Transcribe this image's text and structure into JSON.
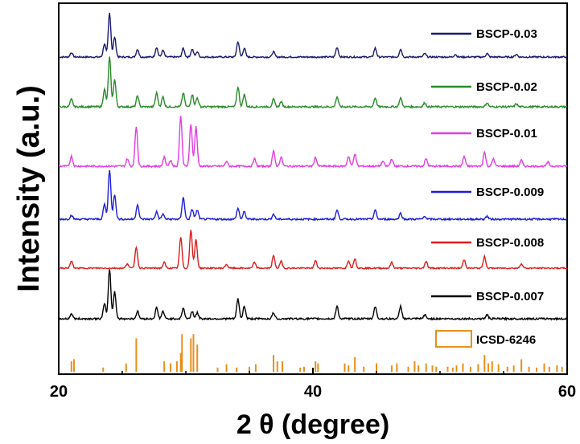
{
  "chart_data": {
    "type": "line",
    "xlabel": "2 θ (degree)",
    "ylabel": "Intensity (a.u.)",
    "xlim": [
      20,
      60
    ],
    "xticks": [
      20,
      40,
      60
    ],
    "xtick_labels": [
      "20",
      "40",
      "60"
    ],
    "yticks_shown": false,
    "legend_placement": "right, beside each trace",
    "series": [
      {
        "name": "BSCP-0.03",
        "color": "#1a1a6e",
        "baseline_order": 6,
        "peaks": [
          [
            21.0,
            0.1
          ],
          [
            23.6,
            0.3
          ],
          [
            24.0,
            1.0
          ],
          [
            24.4,
            0.45
          ],
          [
            26.2,
            0.18
          ],
          [
            27.7,
            0.22
          ],
          [
            28.2,
            0.15
          ],
          [
            29.8,
            0.2
          ],
          [
            30.5,
            0.18
          ],
          [
            30.9,
            0.12
          ],
          [
            34.1,
            0.35
          ],
          [
            34.6,
            0.2
          ],
          [
            36.9,
            0.12
          ],
          [
            41.9,
            0.22
          ],
          [
            44.9,
            0.2
          ],
          [
            46.9,
            0.18
          ],
          [
            48.8,
            0.08
          ],
          [
            51.2,
            0.06
          ],
          [
            53.7,
            0.08
          ],
          [
            56.0,
            0.06
          ]
        ]
      },
      {
        "name": "BSCP-0.02",
        "color": "#2a8a2a",
        "baseline_order": 5,
        "peaks": [
          [
            21.0,
            0.15
          ],
          [
            23.6,
            0.35
          ],
          [
            24.0,
            1.0
          ],
          [
            24.4,
            0.55
          ],
          [
            26.2,
            0.22
          ],
          [
            27.7,
            0.28
          ],
          [
            28.2,
            0.2
          ],
          [
            29.8,
            0.28
          ],
          [
            30.5,
            0.25
          ],
          [
            30.9,
            0.18
          ],
          [
            34.1,
            0.4
          ],
          [
            34.6,
            0.25
          ],
          [
            36.9,
            0.15
          ],
          [
            37.5,
            0.1
          ],
          [
            41.9,
            0.2
          ],
          [
            44.9,
            0.18
          ],
          [
            46.9,
            0.18
          ],
          [
            48.8,
            0.08
          ],
          [
            53.7,
            0.08
          ],
          [
            56.0,
            0.06
          ]
        ]
      },
      {
        "name": "BSCP-0.01",
        "color": "#e23ce2",
        "baseline_order": 4,
        "peaks": [
          [
            21.0,
            0.2
          ],
          [
            25.4,
            0.15
          ],
          [
            26.1,
            0.8
          ],
          [
            28.3,
            0.18
          ],
          [
            28.8,
            0.12
          ],
          [
            29.6,
            1.0
          ],
          [
            30.4,
            0.85
          ],
          [
            30.8,
            0.8
          ],
          [
            33.2,
            0.1
          ],
          [
            35.4,
            0.15
          ],
          [
            36.9,
            0.3
          ],
          [
            37.5,
            0.18
          ],
          [
            40.2,
            0.18
          ],
          [
            42.8,
            0.2
          ],
          [
            43.3,
            0.25
          ],
          [
            45.5,
            0.1
          ],
          [
            46.2,
            0.15
          ],
          [
            48.9,
            0.15
          ],
          [
            51.9,
            0.2
          ],
          [
            53.5,
            0.28
          ],
          [
            54.2,
            0.15
          ],
          [
            56.4,
            0.12
          ],
          [
            58.5,
            0.08
          ]
        ]
      },
      {
        "name": "BSCP-0.009",
        "color": "#1c1cdc",
        "baseline_order": 3,
        "peaks": [
          [
            21.0,
            0.08
          ],
          [
            23.6,
            0.3
          ],
          [
            24.0,
            1.0
          ],
          [
            24.4,
            0.5
          ],
          [
            26.2,
            0.3
          ],
          [
            27.7,
            0.15
          ],
          [
            28.2,
            0.1
          ],
          [
            29.8,
            0.45
          ],
          [
            30.5,
            0.2
          ],
          [
            30.9,
            0.18
          ],
          [
            34.1,
            0.22
          ],
          [
            34.6,
            0.15
          ],
          [
            36.9,
            0.1
          ],
          [
            41.9,
            0.18
          ],
          [
            44.9,
            0.18
          ],
          [
            46.9,
            0.12
          ],
          [
            48.8,
            0.06
          ],
          [
            53.7,
            0.06
          ]
        ]
      },
      {
        "name": "BSCP-0.008",
        "color": "#dc1c1c",
        "baseline_order": 2,
        "peaks": [
          [
            21.0,
            0.18
          ],
          [
            25.4,
            0.12
          ],
          [
            26.1,
            0.55
          ],
          [
            28.3,
            0.15
          ],
          [
            29.6,
            0.8
          ],
          [
            30.4,
            1.0
          ],
          [
            30.8,
            0.75
          ],
          [
            33.2,
            0.1
          ],
          [
            35.4,
            0.15
          ],
          [
            36.9,
            0.32
          ],
          [
            37.5,
            0.18
          ],
          [
            40.2,
            0.2
          ],
          [
            42.8,
            0.2
          ],
          [
            43.3,
            0.25
          ],
          [
            46.2,
            0.15
          ],
          [
            48.9,
            0.18
          ],
          [
            51.9,
            0.22
          ],
          [
            53.5,
            0.3
          ],
          [
            56.4,
            0.12
          ]
        ]
      },
      {
        "name": "BSCP-0.007",
        "color": "#000000",
        "baseline_order": 1,
        "peaks": [
          [
            21.0,
            0.1
          ],
          [
            23.6,
            0.3
          ],
          [
            24.0,
            1.0
          ],
          [
            24.4,
            0.55
          ],
          [
            26.2,
            0.15
          ],
          [
            27.7,
            0.22
          ],
          [
            28.2,
            0.15
          ],
          [
            29.8,
            0.22
          ],
          [
            30.5,
            0.15
          ],
          [
            30.9,
            0.12
          ],
          [
            34.1,
            0.4
          ],
          [
            34.6,
            0.25
          ],
          [
            36.9,
            0.12
          ],
          [
            41.9,
            0.25
          ],
          [
            44.9,
            0.25
          ],
          [
            46.9,
            0.25
          ],
          [
            48.8,
            0.08
          ],
          [
            53.7,
            0.08
          ]
        ]
      },
      {
        "name": "ICSD-6246",
        "type": "stick",
        "color": "#e8901c",
        "baseline_order": 0,
        "sticks": [
          [
            21.0,
            0.25
          ],
          [
            21.2,
            0.3
          ],
          [
            23.5,
            0.1
          ],
          [
            25.3,
            0.2
          ],
          [
            26.1,
            0.8
          ],
          [
            28.3,
            0.25
          ],
          [
            28.8,
            0.2
          ],
          [
            29.3,
            0.25
          ],
          [
            29.6,
            0.45
          ],
          [
            29.7,
            0.9
          ],
          [
            30.4,
            0.8
          ],
          [
            30.6,
            0.9
          ],
          [
            30.9,
            0.65
          ],
          [
            32.5,
            0.1
          ],
          [
            33.2,
            0.18
          ],
          [
            34.0,
            0.1
          ],
          [
            35.0,
            0.12
          ],
          [
            35.5,
            0.18
          ],
          [
            36.9,
            0.4
          ],
          [
            37.2,
            0.25
          ],
          [
            37.6,
            0.25
          ],
          [
            39.0,
            0.1
          ],
          [
            39.3,
            0.12
          ],
          [
            40.2,
            0.25
          ],
          [
            40.4,
            0.2
          ],
          [
            42.5,
            0.2
          ],
          [
            42.8,
            0.15
          ],
          [
            43.3,
            0.35
          ],
          [
            44.0,
            0.12
          ],
          [
            45.0,
            0.2
          ],
          [
            46.2,
            0.15
          ],
          [
            46.6,
            0.2
          ],
          [
            47.5,
            0.12
          ],
          [
            48.0,
            0.25
          ],
          [
            48.3,
            0.15
          ],
          [
            48.9,
            0.2
          ],
          [
            49.4,
            0.15
          ],
          [
            49.7,
            0.12
          ],
          [
            50.6,
            0.12
          ],
          [
            51.0,
            0.1
          ],
          [
            51.3,
            0.15
          ],
          [
            51.8,
            0.2
          ],
          [
            52.4,
            0.12
          ],
          [
            53.0,
            0.18
          ],
          [
            53.5,
            0.4
          ],
          [
            53.8,
            0.2
          ],
          [
            54.1,
            0.25
          ],
          [
            54.6,
            0.18
          ],
          [
            55.3,
            0.12
          ],
          [
            55.8,
            0.15
          ],
          [
            56.4,
            0.3
          ],
          [
            57.0,
            0.12
          ],
          [
            57.6,
            0.1
          ],
          [
            58.2,
            0.2
          ],
          [
            58.6,
            0.12
          ],
          [
            59.2,
            0.15
          ],
          [
            59.6,
            0.12
          ]
        ]
      }
    ]
  }
}
